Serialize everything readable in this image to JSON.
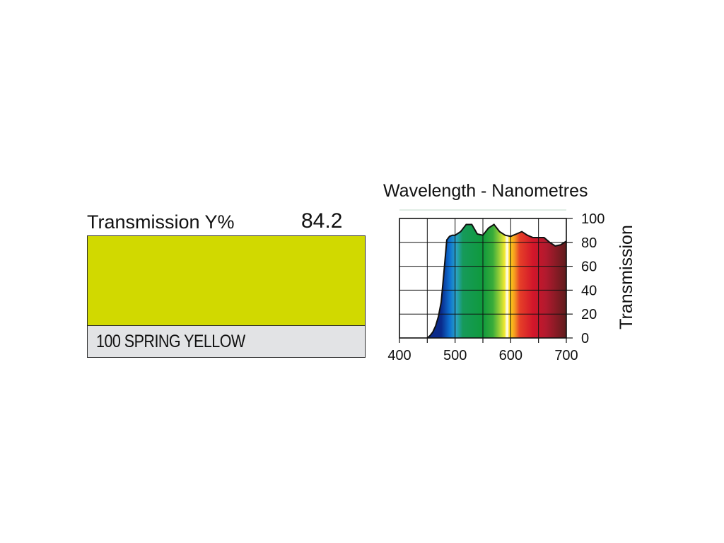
{
  "filter": {
    "transmission_label": "Transmission Y%",
    "transmission_value": "84.2",
    "name": "100 SPRING YELLOW",
    "swatch_color": "#d1d900",
    "label_background": "#e2e3e5"
  },
  "chart_data": {
    "type": "area",
    "title": "Wavelength - Nanometres",
    "xlabel": "",
    "ylabel": "Transmission",
    "xlim": [
      400,
      700
    ],
    "ylim": [
      0,
      100
    ],
    "xticks": [
      "400",
      "500",
      "600",
      "700"
    ],
    "yticks": [
      "0",
      "20",
      "40",
      "60",
      "80",
      "100"
    ],
    "grid": true,
    "fill": "visible spectrum colors",
    "series": [
      {
        "x": [
          450,
          455,
          460,
          465,
          470,
          475,
          480,
          485,
          490,
          495,
          500,
          510,
          520,
          525,
          530,
          540,
          550,
          560,
          570,
          580,
          590,
          600,
          610,
          620,
          630,
          640,
          650,
          660,
          670,
          680,
          690,
          700
        ],
        "values": [
          0,
          2,
          5,
          10,
          18,
          30,
          55,
          82,
          85,
          86,
          86,
          89,
          95,
          95,
          95,
          87,
          86,
          92,
          95,
          89,
          86,
          85,
          87,
          89,
          86,
          84,
          84,
          84,
          80,
          77,
          78,
          81
        ]
      }
    ]
  }
}
